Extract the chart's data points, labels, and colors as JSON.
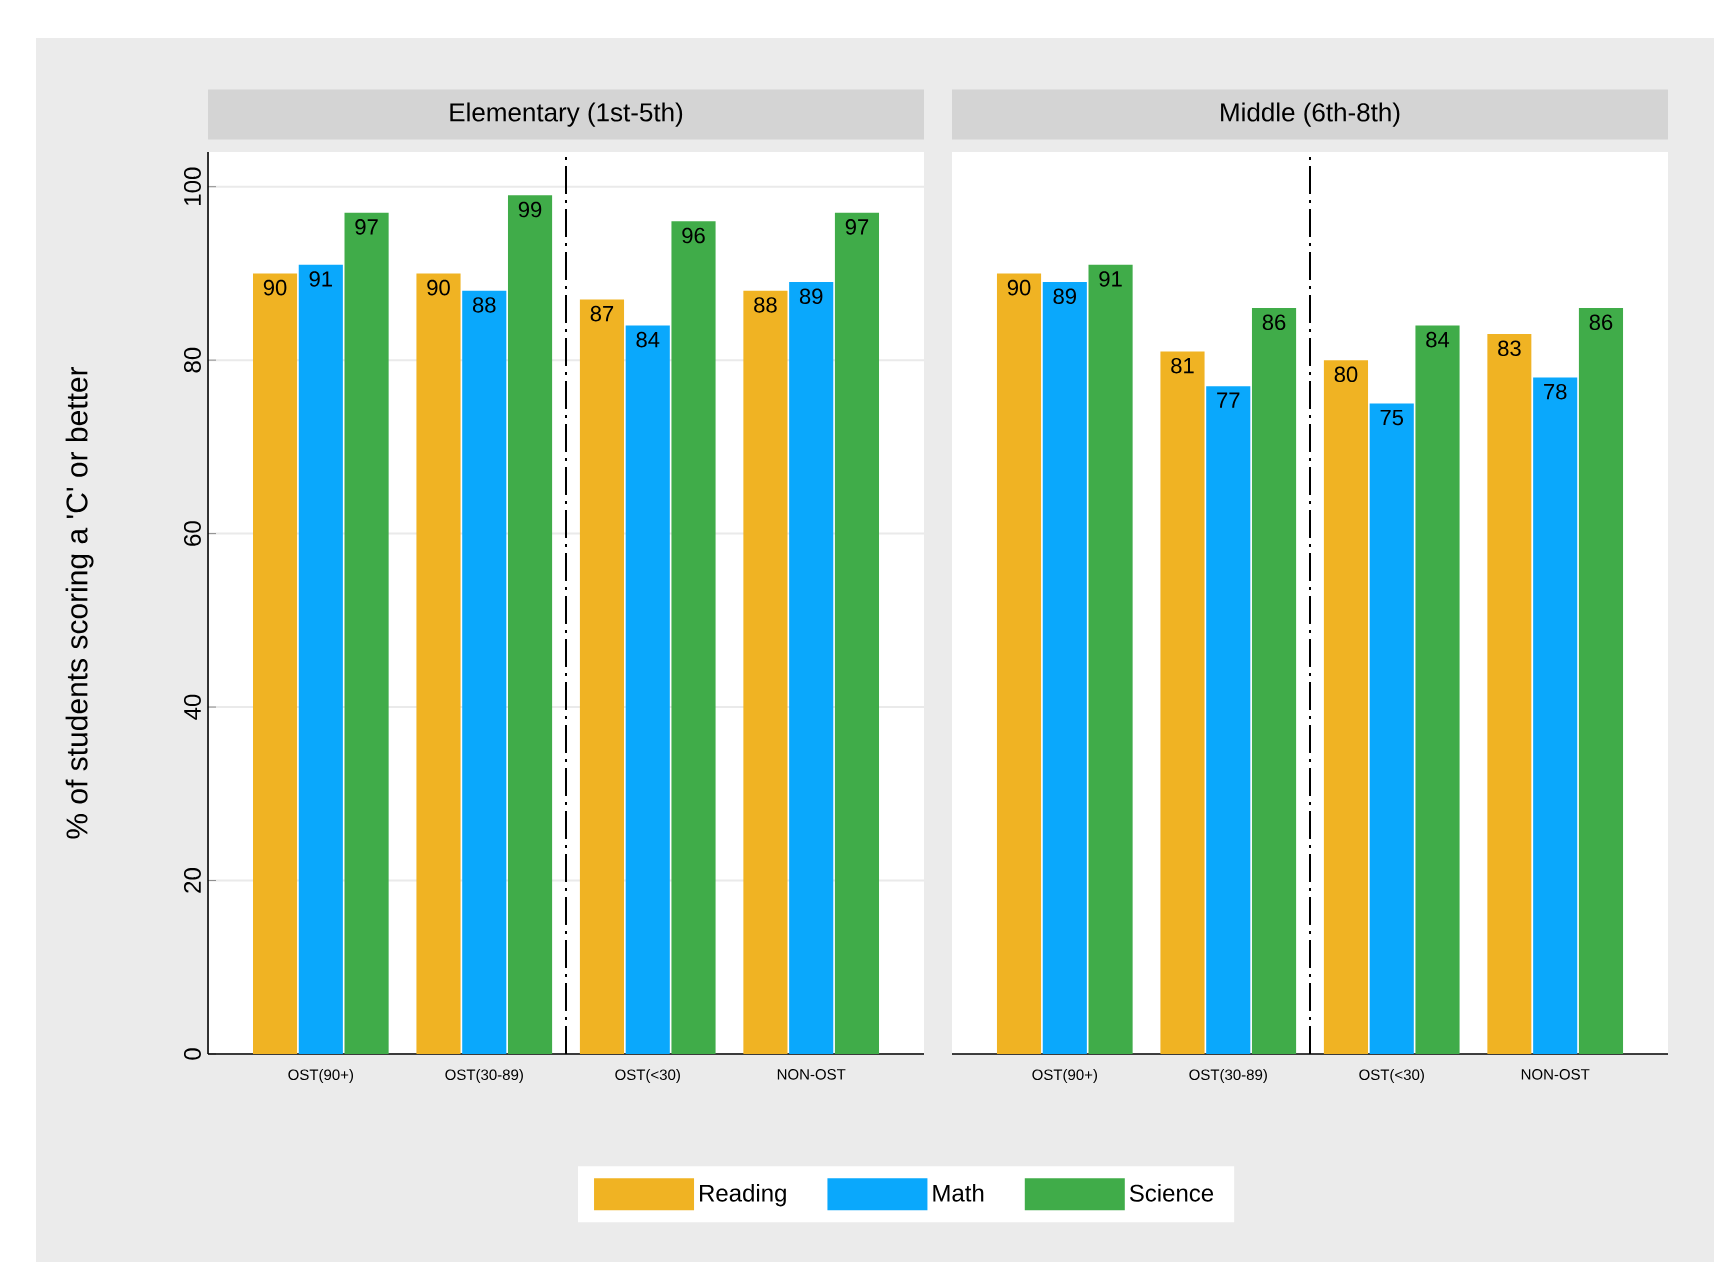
{
  "chart_data": [
    {
      "type": "bar",
      "title": "Elementary (1st-5th)",
      "ylabel": "% of students scoring a 'C' or better",
      "categories": [
        "OST(90+)",
        "OST(30-89)",
        "OST(<30)",
        "NON-OST"
      ],
      "series": [
        {
          "name": "Reading",
          "color": "#f0b323",
          "values": [
            90,
            90,
            87,
            88
          ]
        },
        {
          "name": "Math",
          "color": "#0aa8fc",
          "values": [
            91,
            88,
            84,
            89
          ]
        },
        {
          "name": "Science",
          "color": "#40ac49",
          "values": [
            97,
            99,
            96,
            97
          ]
        }
      ],
      "ylim": [
        0,
        104
      ],
      "yticks": [
        0,
        20,
        40,
        60,
        80,
        100
      ],
      "grid": "y",
      "data_labels": true,
      "legend": "bottom"
    },
    {
      "type": "bar",
      "title": "Middle (6th-8th)",
      "categories": [
        "OST(90+)",
        "OST(30-89)",
        "OST(<30)",
        "NON-OST"
      ],
      "series": [
        {
          "color": "#f0b323",
          "values": [
            90,
            81,
            80,
            83
          ]
        },
        {
          "color": "#0aa8fc",
          "values": [
            89,
            77,
            75,
            78
          ]
        },
        {
          "color": "#40ac49",
          "values": [
            91,
            86,
            84,
            86
          ]
        }
      ],
      "ylim": [
        0,
        104
      ],
      "yticks": [
        0,
        20,
        40,
        60,
        80,
        100
      ],
      "grid": "y",
      "data_labels": true,
      "tick_labels": "x"
    }
  ]
}
